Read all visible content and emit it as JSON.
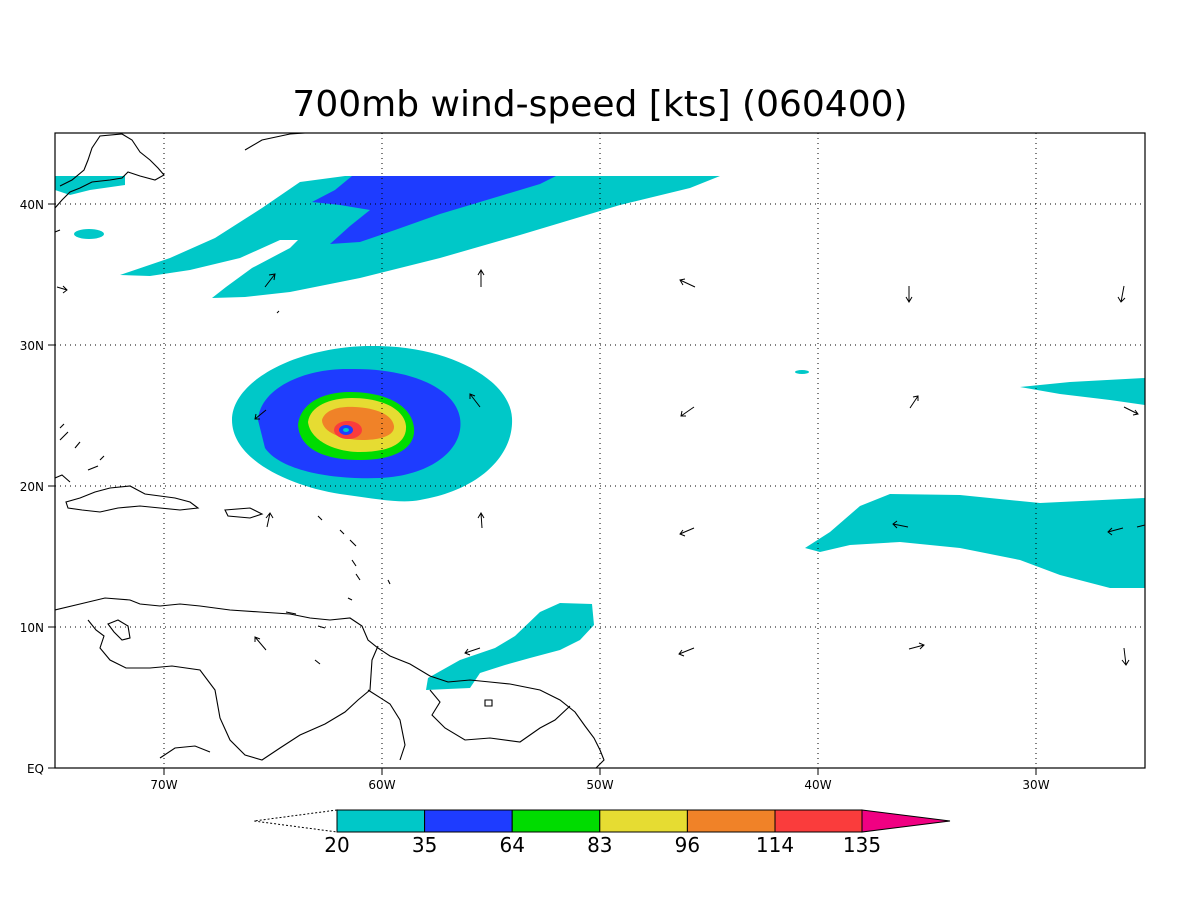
{
  "title": "700mb wind-speed [kts] (060400)",
  "colors": {
    "c20": "#00c8c8",
    "c35": "#1e3cff",
    "c64": "#00dc00",
    "c83": "#e6dc32",
    "c96": "#f08228",
    "c114": "#fa3c3c",
    "c135": "#f00082"
  },
  "axes": {
    "lon_range": [
      -75,
      -25
    ],
    "lat_range": [
      0,
      45
    ],
    "x_ticks": [
      {
        "lon": -70,
        "label": "70W"
      },
      {
        "lon": -60,
        "label": "60W"
      },
      {
        "lon": -50,
        "label": "50W"
      },
      {
        "lon": -40,
        "label": "40W"
      },
      {
        "lon": -30,
        "label": "30W"
      }
    ],
    "y_ticks": [
      {
        "lat": 0,
        "label": "EQ"
      },
      {
        "lat": 10,
        "label": "10N"
      },
      {
        "lat": 20,
        "label": "20N"
      },
      {
        "lat": 30,
        "label": "30N"
      },
      {
        "lat": 40,
        "label": "40N"
      }
    ],
    "grid": true
  },
  "colorbar": {
    "levels": [
      "20",
      "35",
      "64",
      "83",
      "96",
      "114",
      "135"
    ]
  }
}
